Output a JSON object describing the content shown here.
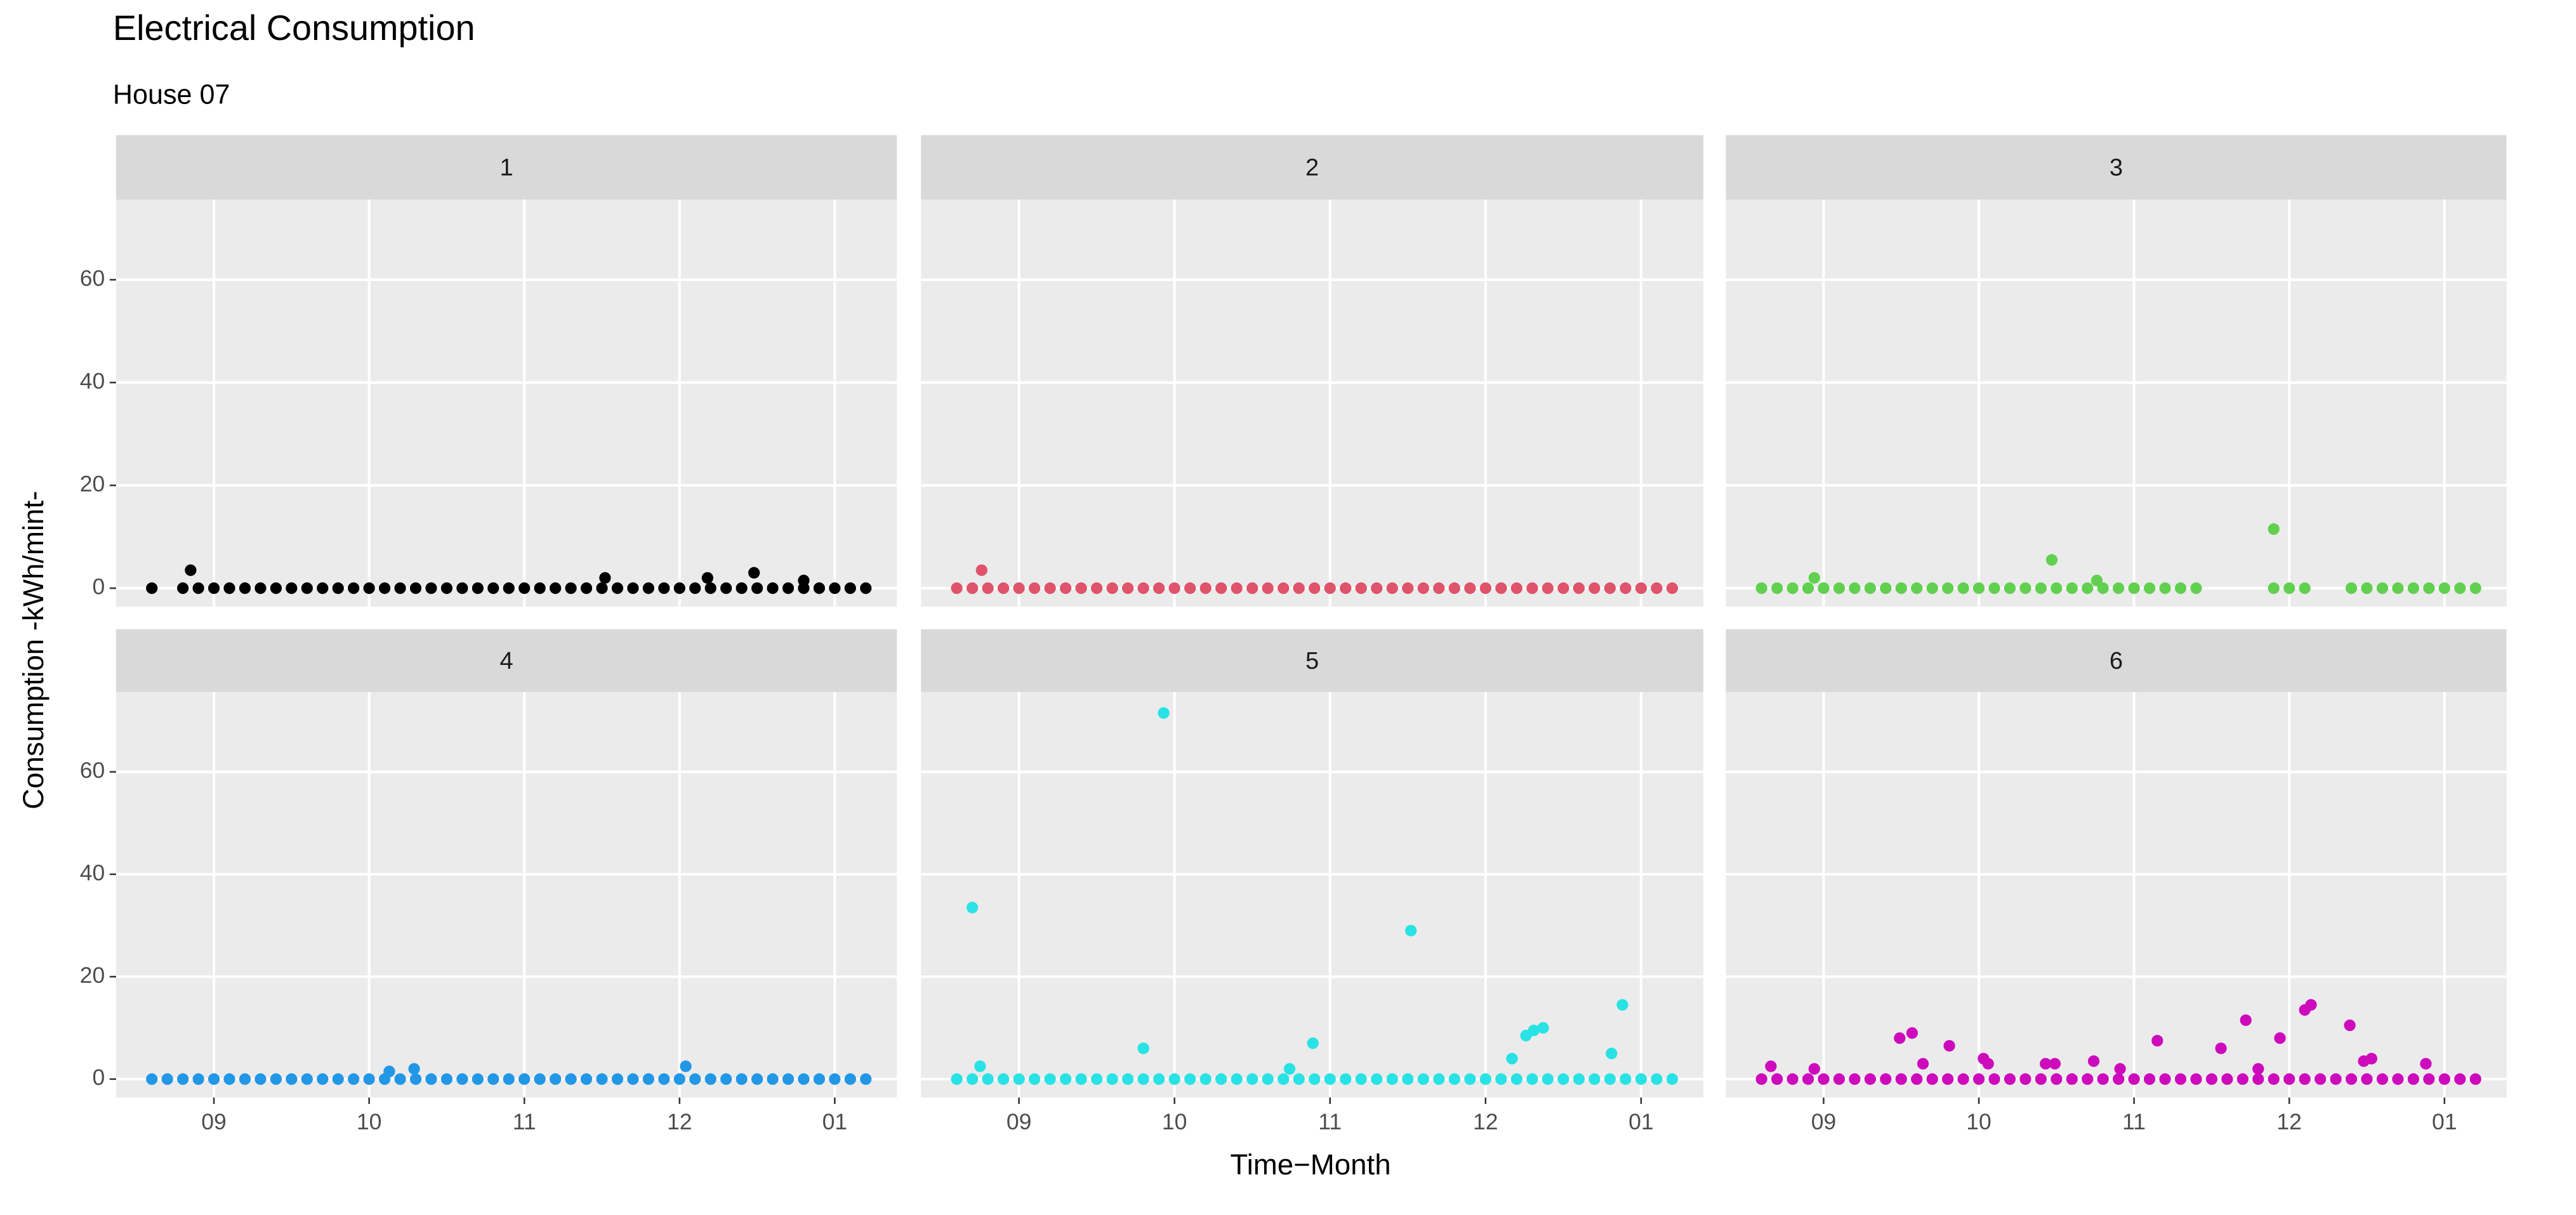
{
  "chart_data": {
    "type": "scatter",
    "title": "Electrical Consumption",
    "subtitle": "House 07",
    "xlabel": "Time−Month",
    "ylabel": "Consumption -kWh/mint-",
    "xlim": [
      8.37,
      13.4
    ],
    "xticks": [
      {
        "value": 9,
        "label": "09"
      },
      10,
      11,
      12,
      {
        "value": 13,
        "label": "01"
      }
    ],
    "ylim": [
      -3.6,
      75.6
    ],
    "yticks": [
      0,
      20,
      40,
      60
    ],
    "grid": true,
    "series": [
      {
        "name": "1",
        "color": "#000000",
        "x": [
          8.6,
          8.8,
          8.9,
          9.0,
          9.1,
          9.2,
          9.3,
          9.4,
          9.5,
          9.6,
          9.7,
          9.8,
          9.9,
          10.0,
          10.1,
          10.2,
          10.3,
          10.4,
          10.5,
          10.6,
          10.7,
          10.8,
          10.9,
          11.0,
          11.1,
          11.2,
          11.3,
          11.4,
          11.5,
          11.6,
          11.7,
          11.8,
          11.9,
          12.0,
          12.1,
          12.2,
          12.3,
          12.4,
          12.5,
          12.6,
          12.7,
          12.8,
          12.9,
          13.0,
          13.1,
          13.2,
          8.85,
          11.52,
          12.18,
          12.48,
          12.8
        ],
        "values": [
          0,
          0,
          0,
          0,
          0,
          0,
          0,
          0,
          0,
          0,
          0,
          0,
          0,
          0,
          0,
          0,
          0,
          0,
          0,
          0,
          0,
          0,
          0,
          0,
          0,
          0,
          0,
          0,
          0,
          0,
          0,
          0,
          0,
          0,
          0,
          0,
          0,
          0,
          0,
          0,
          0,
          0,
          0,
          0,
          0,
          0,
          3.5,
          2,
          2,
          3,
          1.5
        ]
      },
      {
        "name": "2",
        "color": "#df536b",
        "x": [
          8.6,
          8.7,
          8.8,
          8.9,
          9.0,
          9.1,
          9.2,
          9.3,
          9.4,
          9.5,
          9.6,
          9.7,
          9.8,
          9.9,
          10.0,
          10.1,
          10.2,
          10.3,
          10.4,
          10.5,
          10.6,
          10.7,
          10.8,
          10.9,
          11.0,
          11.1,
          11.2,
          11.3,
          11.4,
          11.5,
          11.6,
          11.7,
          11.8,
          11.9,
          12.0,
          12.1,
          12.2,
          12.3,
          12.4,
          12.5,
          12.6,
          12.7,
          12.8,
          12.9,
          13.0,
          13.1,
          13.2,
          8.76
        ],
        "values": [
          0,
          0,
          0,
          0,
          0,
          0,
          0,
          0,
          0,
          0,
          0,
          0,
          0,
          0,
          0,
          0,
          0,
          0,
          0,
          0,
          0,
          0,
          0,
          0,
          0,
          0,
          0,
          0,
          0,
          0,
          0,
          0,
          0,
          0,
          0,
          0,
          0,
          0,
          0,
          0,
          0,
          0,
          0,
          0,
          0,
          0,
          0,
          3.5
        ]
      },
      {
        "name": "3",
        "color": "#61d04f",
        "x": [
          8.6,
          8.7,
          8.8,
          8.9,
          9.0,
          9.1,
          9.2,
          9.3,
          9.4,
          9.5,
          9.6,
          9.7,
          9.8,
          9.9,
          10.0,
          10.1,
          10.2,
          10.3,
          10.4,
          10.5,
          10.6,
          10.7,
          10.8,
          10.9,
          11.0,
          11.1,
          11.2,
          11.3,
          11.4,
          11.9,
          12.0,
          12.1,
          12.4,
          12.5,
          12.6,
          12.7,
          12.8,
          12.9,
          13.0,
          13.1,
          13.2,
          8.94,
          10.47,
          10.76,
          11.9
        ],
        "values": [
          0,
          0,
          0,
          0,
          0,
          0,
          0,
          0,
          0,
          0,
          0,
          0,
          0,
          0,
          0,
          0,
          0,
          0,
          0,
          0,
          0,
          0,
          0,
          0,
          0,
          0,
          0,
          0,
          0,
          0,
          0,
          0,
          0,
          0,
          0,
          0,
          0,
          0,
          0,
          0,
          0,
          2,
          5.5,
          1.5,
          11.5
        ]
      },
      {
        "name": "4",
        "color": "#2297e6",
        "x": [
          8.6,
          8.7,
          8.8,
          8.9,
          9.0,
          9.1,
          9.2,
          9.3,
          9.4,
          9.5,
          9.6,
          9.7,
          9.8,
          9.9,
          10.0,
          10.1,
          10.2,
          10.3,
          10.4,
          10.5,
          10.6,
          10.7,
          10.8,
          10.9,
          11.0,
          11.1,
          11.2,
          11.3,
          11.4,
          11.5,
          11.6,
          11.7,
          11.8,
          11.9,
          12.0,
          12.1,
          12.2,
          12.3,
          12.4,
          12.5,
          12.6,
          12.7,
          12.8,
          12.9,
          13.0,
          13.1,
          13.2,
          10.13,
          10.29,
          12.04
        ],
        "values": [
          0,
          0,
          0,
          0,
          0,
          0,
          0,
          0,
          0,
          0,
          0,
          0,
          0,
          0,
          0,
          0,
          0,
          0,
          0,
          0,
          0,
          0,
          0,
          0,
          0,
          0,
          0,
          0,
          0,
          0,
          0,
          0,
          0,
          0,
          0,
          0,
          0,
          0,
          0,
          0,
          0,
          0,
          0,
          0,
          0,
          0,
          0,
          1.5,
          2,
          2.5
        ]
      },
      {
        "name": "5",
        "color": "#28e2e5",
        "x": [
          8.6,
          8.7,
          8.8,
          8.9,
          9.0,
          9.1,
          9.2,
          9.3,
          9.4,
          9.5,
          9.6,
          9.7,
          9.8,
          9.9,
          10.0,
          10.1,
          10.2,
          10.3,
          10.4,
          10.5,
          10.6,
          10.7,
          10.8,
          10.9,
          11.0,
          11.1,
          11.2,
          11.3,
          11.4,
          11.5,
          11.6,
          11.7,
          11.8,
          11.9,
          12.0,
          12.1,
          12.2,
          12.3,
          12.4,
          12.5,
          12.6,
          12.7,
          12.8,
          12.9,
          13.0,
          13.1,
          13.2,
          8.7,
          8.75,
          9.8,
          9.93,
          10.74,
          10.89,
          11.52,
          12.17,
          12.26,
          12.31,
          12.37,
          12.81,
          12.88
        ],
        "values": [
          0,
          0,
          0,
          0,
          0,
          0,
          0,
          0,
          0,
          0,
          0,
          0,
          0,
          0,
          0,
          0,
          0,
          0,
          0,
          0,
          0,
          0,
          0,
          0,
          0,
          0,
          0,
          0,
          0,
          0,
          0,
          0,
          0,
          0,
          0,
          0,
          0,
          0,
          0,
          0,
          0,
          0,
          0,
          0,
          0,
          0,
          0,
          33.5,
          2.5,
          6,
          71.5,
          2,
          7,
          29,
          4,
          8.5,
          9.5,
          10,
          5,
          14.5
        ]
      },
      {
        "name": "6",
        "color": "#cd0bbc",
        "x": [
          8.6,
          8.7,
          8.8,
          8.9,
          9.0,
          9.1,
          9.2,
          9.3,
          9.4,
          9.5,
          9.6,
          9.7,
          9.8,
          9.9,
          10.0,
          10.1,
          10.2,
          10.3,
          10.4,
          10.5,
          10.6,
          10.7,
          10.8,
          10.9,
          11.0,
          11.1,
          11.2,
          11.3,
          11.4,
          11.5,
          11.6,
          11.7,
          11.8,
          11.9,
          12.0,
          12.1,
          12.2,
          12.3,
          12.4,
          12.5,
          12.6,
          12.7,
          12.8,
          12.9,
          13.0,
          13.1,
          13.2,
          8.66,
          8.94,
          9.49,
          9.57,
          9.64,
          9.81,
          10.03,
          10.06,
          10.43,
          10.49,
          10.74,
          10.91,
          11.15,
          11.56,
          11.72,
          11.8,
          11.94,
          12.1,
          12.14,
          12.39,
          12.48,
          12.53,
          12.88
        ],
        "values": [
          0,
          0,
          0,
          0,
          0,
          0,
          0,
          0,
          0,
          0,
          0,
          0,
          0,
          0,
          0,
          0,
          0,
          0,
          0,
          0,
          0,
          0,
          0,
          0,
          0,
          0,
          0,
          0,
          0,
          0,
          0,
          0,
          0,
          0,
          0,
          0,
          0,
          0,
          0,
          0,
          0,
          0,
          0,
          0,
          0,
          0,
          0,
          2.5,
          2,
          8,
          9,
          3,
          6.5,
          4,
          3,
          3,
          3,
          3.5,
          2,
          7.5,
          6,
          11.5,
          2,
          8,
          13.5,
          14.5,
          10.5,
          3.5,
          4,
          3
        ]
      }
    ]
  }
}
